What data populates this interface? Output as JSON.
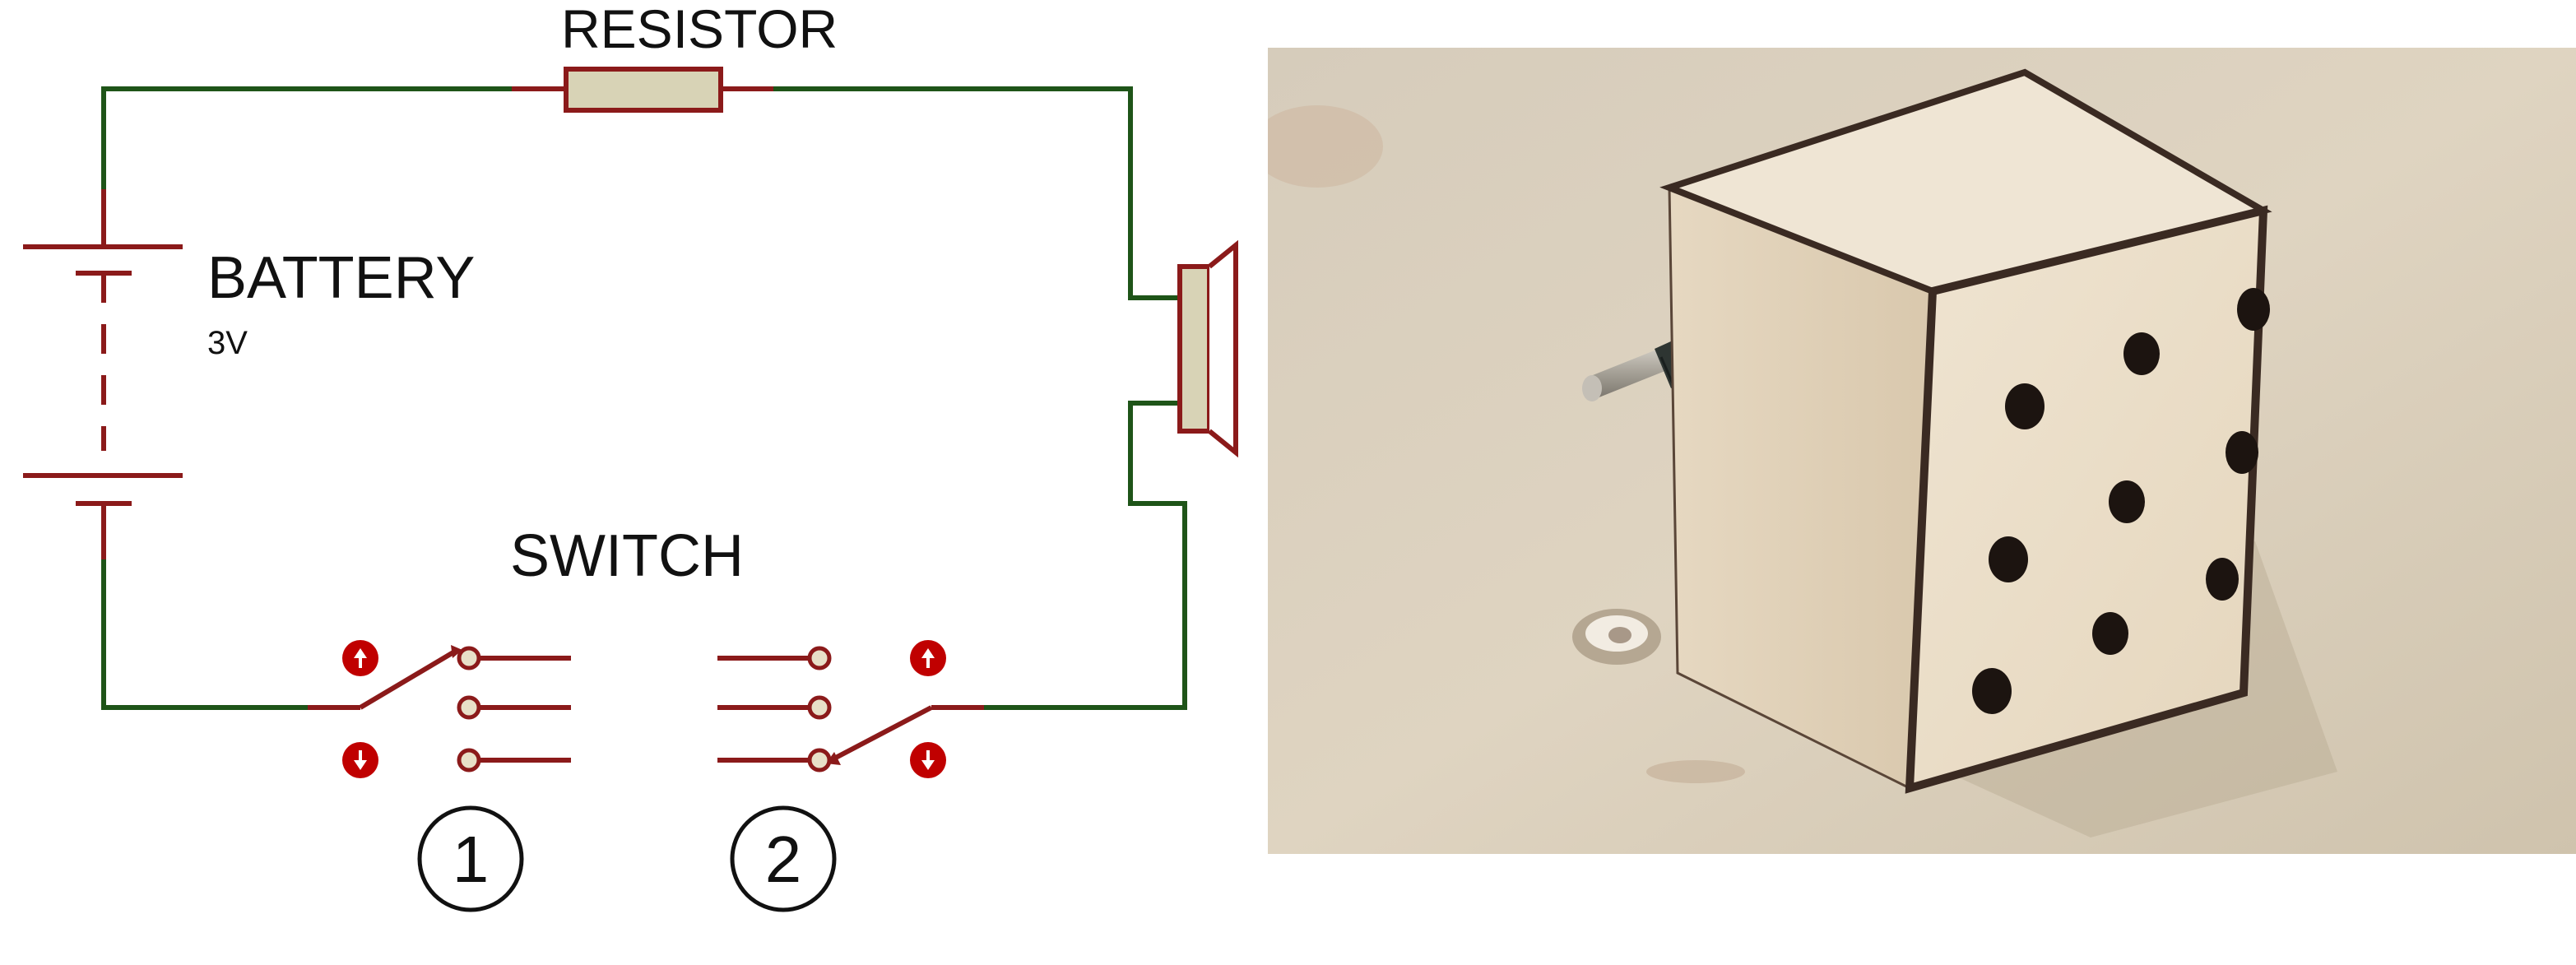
{
  "schematic": {
    "labels": {
      "resistor": "RESISTOR",
      "battery": "BATTERY",
      "battery_voltage": "3V",
      "switch": "SWITCH",
      "switch_1_marker": "1",
      "switch_2_marker": "2"
    },
    "colors": {
      "wire": "#1e5418",
      "component": "#8b1a1a",
      "component_fill": "#d8d3b6",
      "terminal_fill": "#e8e0c8",
      "marker_fill": "#c00000"
    },
    "icons": [
      "up-arrow-icon",
      "down-arrow-icon",
      "speaker-icon",
      "resistor-icon",
      "battery-icon"
    ]
  },
  "photo": {
    "subject": "wooden-cube-speaker-with-audio-jack",
    "colors": {
      "table": "#d9cdb8",
      "wood_light": "#ece0cc",
      "wood_top": "#efe5d4",
      "edge_dark": "#3a2a22",
      "hole": "#1c1410",
      "plug_metal": "#b9b4aa",
      "plug_body": "#2d3330"
    }
  }
}
